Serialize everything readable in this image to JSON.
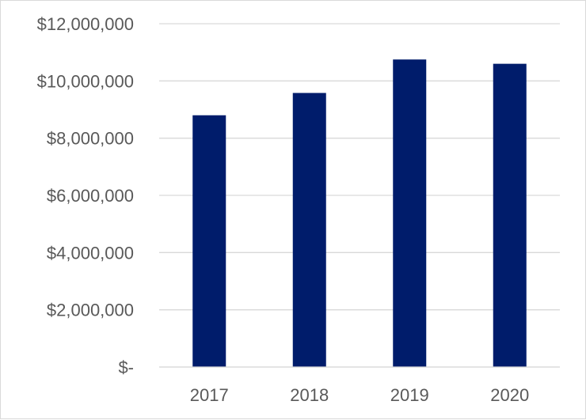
{
  "chart_data": {
    "type": "bar",
    "categories": [
      "2017",
      "2018",
      "2019",
      "2020"
    ],
    "series": [
      {
        "values": [
          8800000,
          9580000,
          10750000,
          10600000
        ]
      }
    ],
    "title": "",
    "xlabel": "",
    "ylabel": "",
    "ylim": [
      0,
      12000000
    ],
    "y_ticks": [
      {
        "value": 0,
        "label": "$-"
      },
      {
        "value": 2000000,
        "label": "$2,000,000"
      },
      {
        "value": 4000000,
        "label": "$4,000,000"
      },
      {
        "value": 6000000,
        "label": "$6,000,000"
      },
      {
        "value": 8000000,
        "label": "$8,000,000"
      },
      {
        "value": 10000000,
        "label": "$10,000,000"
      },
      {
        "value": 12000000,
        "label": "$12,000,000"
      }
    ],
    "grid": true,
    "legend": "none",
    "bar_color": "#001c6b"
  }
}
